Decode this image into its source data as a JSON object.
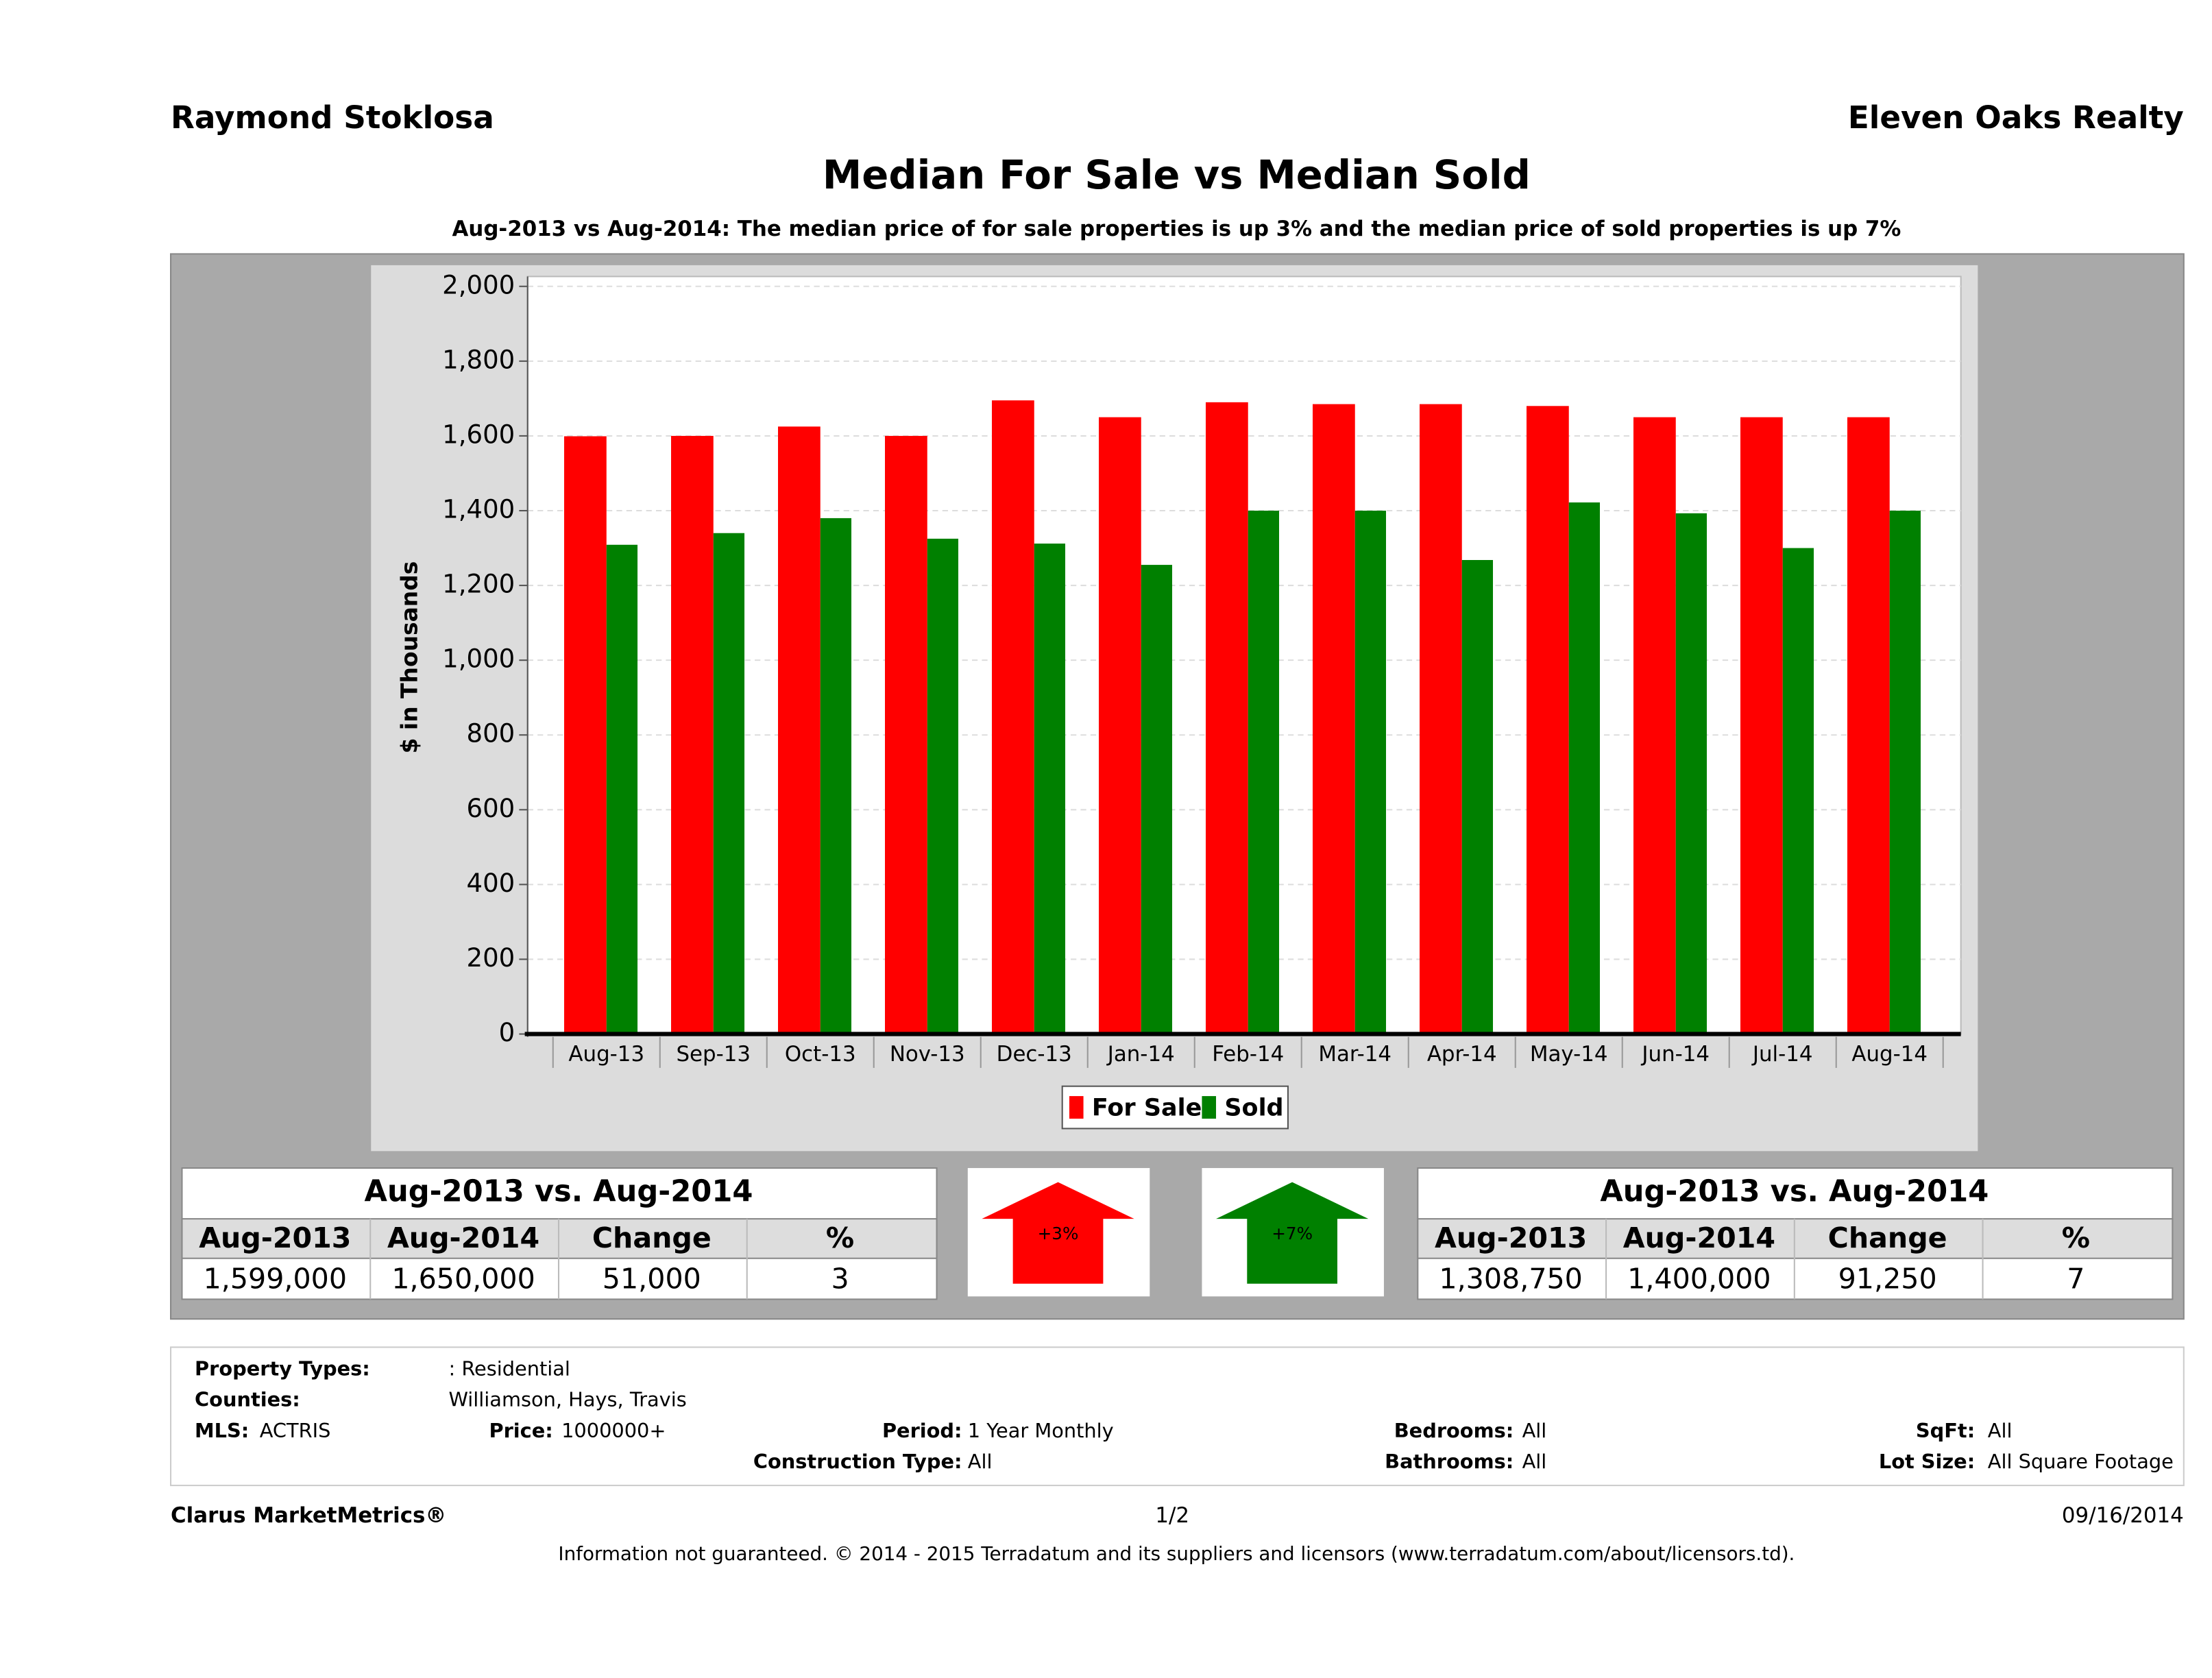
{
  "header": {
    "agent": "Raymond Stoklosa",
    "company": "Eleven Oaks Realty"
  },
  "chart_data": {
    "type": "bar",
    "title": "Median For Sale vs Median Sold",
    "subtitle": "Aug-2013 vs Aug-2014: The median price of for sale properties is up 3% and the median price of sold properties is up 7%",
    "y_label": "$ in Thousands",
    "categories": [
      "Aug-13",
      "Sep-13",
      "Oct-13",
      "Nov-13",
      "Dec-13",
      "Jan-14",
      "Feb-14",
      "Mar-14",
      "Apr-14",
      "May-14",
      "Jun-14",
      "Jul-14",
      "Aug-14"
    ],
    "series": [
      {
        "name": "For Sale",
        "color": "#ff0000",
        "values": [
          1599,
          1600,
          1625,
          1600,
          1695,
          1650,
          1690,
          1685,
          1685,
          1680,
          1650,
          1650,
          1650
        ]
      },
      {
        "name": "Sold",
        "color": "#008000",
        "values": [
          1308.75,
          1340,
          1380,
          1325,
          1312,
          1255,
          1400,
          1400,
          1268,
          1422,
          1393,
          1300,
          1400
        ]
      }
    ],
    "ylim": [
      0,
      2000
    ],
    "yticks": [
      0,
      200,
      400,
      600,
      800,
      {
        "value": 1000,
        "label": "1,000"
      },
      {
        "value": 1200,
        "label": "1,200"
      },
      {
        "value": 1400,
        "label": "1,400"
      },
      {
        "value": 1600,
        "label": "1,600"
      },
      {
        "value": 1800,
        "label": "1,800"
      },
      {
        "value": 2000,
        "label": "2,000"
      }
    ],
    "grid": true
  },
  "summary": [
    {
      "heading": "Aug-2013 vs. Aug-2014",
      "columns": [
        "Aug-2013",
        "Aug-2014",
        "Change",
        "%"
      ],
      "row": [
        "1,599,000",
        "1,650,000",
        "51,000",
        "3"
      ],
      "arrow": "+3%",
      "color": "#ff0000"
    },
    {
      "heading": "Aug-2013 vs. Aug-2014",
      "columns": [
        "Aug-2013",
        "Aug-2014",
        "Change",
        "%"
      ],
      "row": [
        "1,308,750",
        "1,400,000",
        "91,250",
        "7"
      ],
      "arrow": "+7%",
      "color": "#008000"
    }
  ],
  "criteria": [
    {
      "label": "Property Types:",
      "value": ": Residential"
    },
    {
      "label": "Counties:",
      "value": "Williamson, Hays, Travis"
    },
    {
      "label": "MLS:",
      "value": "ACTRIS"
    },
    {
      "label": "Price:",
      "value": "1000000+"
    },
    {
      "label": "Period:",
      "value": "1 Year Monthly"
    },
    {
      "label": "Bedrooms:",
      "value": "All"
    },
    {
      "label": "SqFt:",
      "value": "All"
    },
    {
      "label": "Construction Type:",
      "value": "All"
    },
    {
      "label": "Bathrooms:",
      "value": "All"
    },
    {
      "label": "Lot Size:",
      "value": "All Square Footage"
    }
  ],
  "footer": {
    "brand": "Clarus MarketMetrics®",
    "page": "1/2",
    "date": "09/16/2014",
    "disclaimer": "Information not guaranteed. © 2014 - 2015 Terradatum and its suppliers and licensors (www.terradatum.com/about/licensors.td)."
  }
}
